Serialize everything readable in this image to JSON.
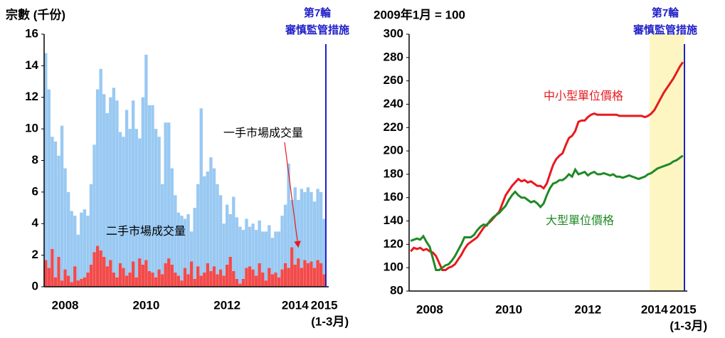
{
  "chart_data": [
    {
      "type": "bar",
      "stacked": true,
      "y_label": "宗數 (千份)",
      "categories": [
        null,
        null,
        null,
        null,
        null,
        null,
        "2008",
        null,
        null,
        null,
        null,
        null,
        null,
        null,
        null,
        null,
        null,
        null,
        null,
        null,
        null,
        null,
        null,
        null,
        null,
        null,
        null,
        null,
        null,
        null,
        null,
        "2010",
        null,
        null,
        null,
        null,
        null,
        null,
        null,
        null,
        null,
        null,
        null,
        null,
        null,
        null,
        null,
        null,
        null,
        null,
        null,
        null,
        null,
        null,
        null,
        null,
        "2012",
        null,
        null,
        null,
        null,
        null,
        null,
        null,
        null,
        null,
        null,
        null,
        null,
        null,
        null,
        null,
        null,
        null,
        null,
        null,
        null,
        "2014",
        null,
        null,
        null,
        null,
        null,
        null,
        null,
        null,
        "2015"
      ],
      "x_note": "(1-3月)",
      "series": [
        {
          "name": "一手市場成交量",
          "color": "#f24a4a",
          "values": [
            1.7,
            1.2,
            2.4,
            0.6,
            1.9,
            0.4,
            1.1,
            0.7,
            0.3,
            1.3,
            0.4,
            0.5,
            0.6,
            0.9,
            1.4,
            2.2,
            2.6,
            2.3,
            1.9,
            1.3,
            1.7,
            0.9,
            0.6,
            1.5,
            1.2,
            0.7,
            0.9,
            1.6,
            0.6,
            1.8,
            1.4,
            1.7,
            1.0,
            0.9,
            0.6,
            1.1,
            0.8,
            1.5,
            1.8,
            1.4,
            0.9,
            0.7,
            0.4,
            1.2,
            0.8,
            1.6,
            0.5,
            1.3,
            0.7,
            0.9,
            1.5,
            1.0,
            1.3,
            0.8,
            1.1,
            0.7,
            1.4,
            1.9,
            1.0,
            0.5,
            0.2,
            0.5,
            1.2,
            1.3,
            1.1,
            0.7,
            1.5,
            0.9,
            0.4,
            1.2,
            0.8,
            0.9,
            0.6,
            1.1,
            1.5,
            1.2,
            2.5,
            1.4,
            1.8,
            1.2,
            1.7,
            1.5,
            1.6,
            1.2,
            1.7,
            1.5,
            0.8
          ]
        },
        {
          "name": "二手市場成交量",
          "color": "#99c9f2",
          "values": [
            13.1,
            11.3,
            7.1,
            8.6,
            6.4,
            9.8,
            6.4,
            5.3,
            4.5,
            3.2,
            2.9,
            4.2,
            4.3,
            3.6,
            5.1,
            6.8,
            9.9,
            11.5,
            10.3,
            9.7,
            10.3,
            11.7,
            11.2,
            8.3,
            8.3,
            10.5,
            9.1,
            10.2,
            9.4,
            7.6,
            10.6,
            13,
            10.5,
            10.6,
            9.4,
            8.4,
            5.7,
            8.9,
            8.6,
            6.1,
            4.9,
            4,
            4.1,
            3.1,
            3.8,
            1.9,
            4.5,
            5.2,
            10.6,
            6.1,
            5.8,
            7.2,
            6.2,
            5.7,
            4.7,
            3.3,
            3.8,
            2.7,
            4.7,
            3.9,
            3.6,
            3.1,
            3.1,
            2.5,
            2.9,
            2.9,
            2.7,
            2.6,
            3.1,
            2.7,
            2.3,
            2.6,
            2.9,
            3.4,
            3.7,
            6.6,
            3,
            4.9,
            3.7,
            5,
            4.3,
            4.8,
            4.4,
            4.2,
            4.5,
            4.5,
            3.5
          ]
        }
      ],
      "ylim": [
        0,
        16
      ],
      "yticks": [
        0,
        2,
        4,
        6,
        8,
        10,
        12,
        14,
        16
      ],
      "annotation": {
        "text": [
          "第7輪",
          "審慎監管措施"
        ],
        "at": 86,
        "color": "#2020c8"
      }
    },
    {
      "type": "line",
      "y_label": "2009年1月 = 100",
      "categories": [
        null,
        null,
        null,
        null,
        null,
        null,
        "2008",
        null,
        null,
        null,
        null,
        null,
        null,
        null,
        null,
        null,
        null,
        null,
        null,
        null,
        null,
        null,
        null,
        null,
        null,
        null,
        null,
        null,
        null,
        null,
        null,
        "2010",
        null,
        null,
        null,
        null,
        null,
        null,
        null,
        null,
        null,
        null,
        null,
        null,
        null,
        null,
        null,
        null,
        null,
        null,
        null,
        null,
        null,
        null,
        null,
        null,
        "2012",
        null,
        null,
        null,
        null,
        null,
        null,
        null,
        null,
        null,
        null,
        null,
        null,
        null,
        null,
        null,
        null,
        null,
        null,
        null,
        null,
        "2014",
        null,
        null,
        null,
        null,
        null,
        null,
        null,
        null,
        "2015"
      ],
      "x_note": "(1-3月)",
      "series": [
        {
          "name": "中小型單位價格",
          "color": "#e8191e",
          "values": [
            114,
            117,
            116,
            117,
            115,
            116,
            114,
            113,
            110,
            104,
            98,
            98,
            100,
            101,
            103,
            107,
            111,
            116,
            120,
            122,
            124,
            126,
            130,
            134,
            137,
            139,
            142,
            145,
            148,
            155,
            162,
            166,
            170,
            173,
            176,
            174,
            175,
            173,
            174,
            172,
            170,
            170,
            168,
            172,
            180,
            188,
            193,
            196,
            198,
            205,
            211,
            213,
            217,
            225,
            226,
            226,
            229,
            231,
            232,
            231,
            231,
            231,
            231,
            231,
            231,
            231,
            230,
            230,
            230,
            230,
            230,
            230,
            230,
            230,
            229,
            230,
            232,
            235,
            240,
            245,
            250,
            254,
            258,
            262,
            267,
            272,
            276
          ]
        },
        {
          "name": "大型單位價格",
          "color": "#1f8a25",
          "values": [
            123,
            124,
            125,
            124,
            127,
            122,
            118,
            108,
            98,
            98,
            100,
            102,
            103,
            106,
            110,
            115,
            120,
            126,
            126,
            126,
            128,
            132,
            135,
            137,
            136,
            140,
            143,
            145,
            147,
            150,
            153,
            158,
            162,
            165,
            162,
            160,
            160,
            158,
            156,
            157,
            155,
            152,
            155,
            162,
            168,
            172,
            173,
            175,
            175,
            177,
            180,
            178,
            184,
            180,
            181,
            182,
            179,
            181,
            182,
            180,
            180,
            181,
            180,
            179,
            180,
            178,
            178,
            177,
            178,
            179,
            178,
            177,
            176,
            177,
            178,
            180,
            181,
            183,
            185,
            186,
            187,
            188,
            189,
            191,
            192,
            194,
            196
          ]
        }
      ],
      "ylim": [
        80,
        300
      ],
      "yticks": [
        80,
        100,
        120,
        140,
        160,
        180,
        200,
        220,
        240,
        260,
        280,
        300
      ],
      "shade": {
        "from": 76,
        "to": 86,
        "color": "#fdf6c3"
      },
      "annotation": {
        "text": [
          "第7輪",
          "審慎監管措施"
        ],
        "at": 86,
        "color": "#2020c8"
      }
    }
  ]
}
